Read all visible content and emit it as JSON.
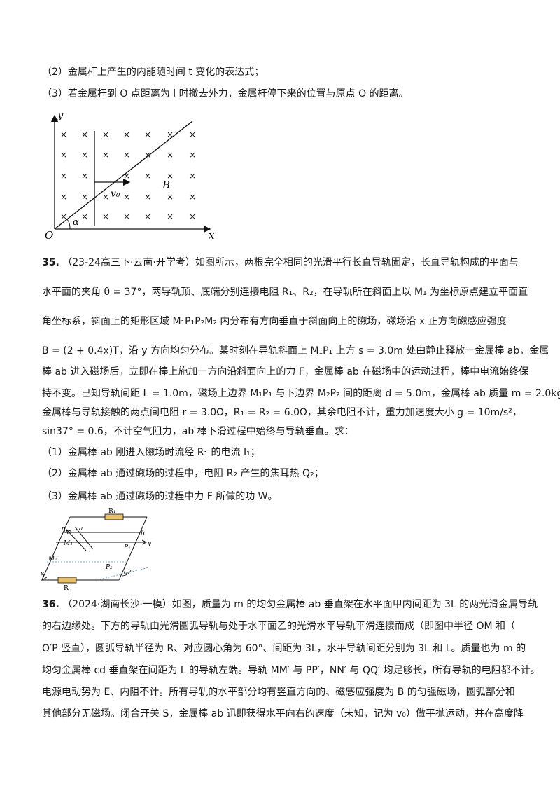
{
  "prev": {
    "q2": "（2）金属杆上产生的内能随时间 t 变化的表达式；",
    "q3": "（3）若金属杆到 O 点距离为 l 时撤去外力，金属杆停下来的位置与原点 O 的距离。"
  },
  "fig1": {
    "y": "y",
    "x": "x",
    "o": "O",
    "v0": "v₀",
    "b": "B",
    "alpha": "α",
    "cross": "×"
  },
  "q35": {
    "num": "35.",
    "source": "（23-24高三下·云南·开学考）",
    "l1": "如图所示，两根完全相同的光滑平行长直导轨固定，长直导轨构成的平面与",
    "l2": "水平面的夹角 θ = 37°，两导轨顶、底端分别连接电阻 R₁、R₂，在导轨所在斜面上以 M₁ 为坐标原点建立平面直",
    "l3": "角坐标系，斜面上的矩形区域 M₁P₁P₂M₂ 内分布有方向垂直于斜面向上的磁场，磁场沿 x 正方向磁感应强度",
    "l4": "B = (2 + 0.4x)T，沿 y 方向均匀分布。某时刻在导轨斜面上 M₁P₁ 上方 s = 3.0m 处由静止释放一金属棒 ab，金属",
    "l5": "棒 ab 进入磁场后，立即在棒上施加一方向沿斜面向上的力 F，金属棒 ab 在磁场中的运动过程，棒中电流始终保",
    "l6": "持不变。已知导轨间距 L = 1.0m，磁场上边界 M₁P₁ 与下边界 M₂P₂ 间的距离 d = 5.0m，金属棒 ab 质量 m = 2.0kg，",
    "l7": "金属棒与导轨接触的两点间电阻 r = 3.0Ω，R₁ = R₂ = 6.0Ω，其余电阻不计，重力加速度大小 g = 10m/s²，",
    "l8": "sin37° = 0.6，不计空气阻力，ab 棒下滑过程中始终与导轨垂直。求：",
    "s1": "（1）金属棒 ab 刚进入磁场时流经 R₁ 的电流 I₁；",
    "s2": "（2）金属棒 ab 通过磁场的过程中，电阻 R₂ 产生的焦耳热 Q₂；",
    "s3": "（3）金属棒 ab 通过磁场的过程中力 F 所做的功 W。"
  },
  "fig2": {
    "r1": "R₁",
    "r": "R",
    "b": "B",
    "a": "a",
    "bb": "b",
    "m1": "M₁",
    "p1": "P₁",
    "y": "y",
    "m2": "M₂",
    "p2": "P₂",
    "x": "x",
    "theta": "θ"
  },
  "q36": {
    "num": "36.",
    "source": "（2024·湖南长沙·一模）",
    "l1": "如图，质量为 m 的均匀金属棒 ab 垂直架在水平面甲内间距为 3L 的两光滑金属导轨",
    "l2": "的右边缘处。下方的导轨由光滑圆弧导轨与处于水平面乙的光滑水平导轨平滑连接而成（即图中半径 OM 和（",
    "l3": "O′P 竖直），圆弧导轨半径为 R、对应圆心角为 60°、间距为 3L，水平导轨间距分别为 3L 和 L。质量也为 m 的",
    "l4": "均匀金属棒 cd 垂直架在间距为 L 的导轨左端。导轨 MM′ 与 PP′，NN′ 与 QQ′ 均足够长，所有导轨的电阻都不计。",
    "l5": "电源电动势为 E、内阻不计。所有导轨的水平部分均有竖直方向的、磁感应强度为 B 的匀强磁场，圆弧部分和",
    "l6": "其他部分无磁场。闭合开关 S，金属棒 ab 迅即获得水平向右的速度（未知，记为 v₀）做平抛运动，并在高度降"
  }
}
